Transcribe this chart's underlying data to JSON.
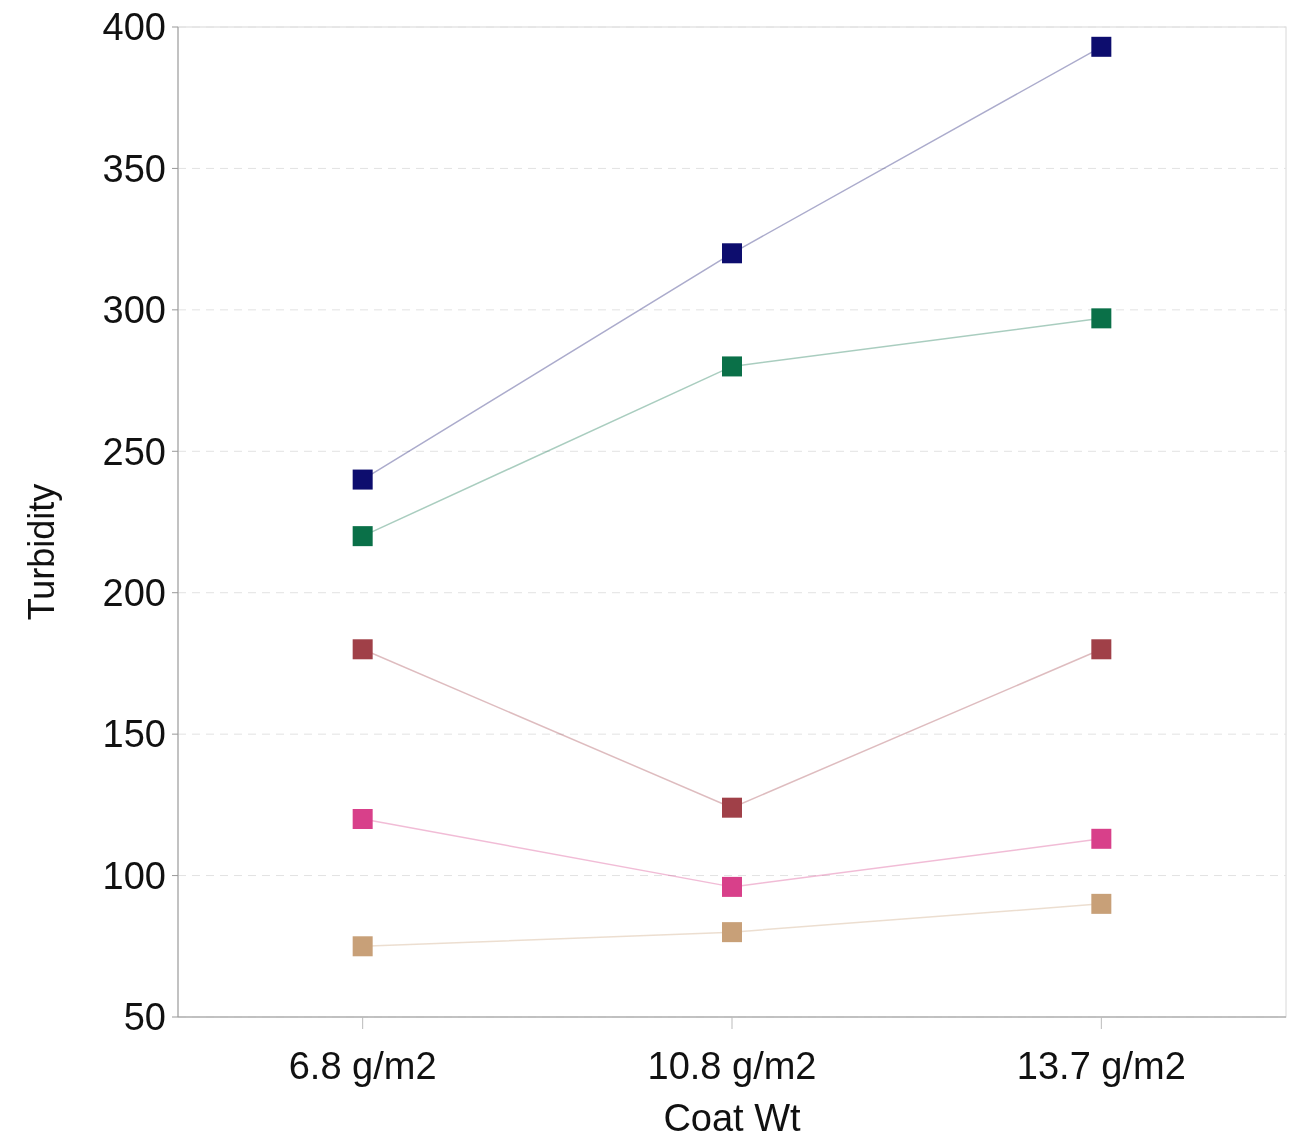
{
  "chart_data": {
    "type": "line",
    "xlabel": "Coat Wt",
    "ylabel": "Turbidity",
    "categories": [
      "6.8 g/m2",
      "10.8 g/m2",
      "13.7 g/m2"
    ],
    "series": [
      {
        "color": "#0d0d6e",
        "values": [
          240,
          320,
          393
        ]
      },
      {
        "color": "#0a7048",
        "values": [
          220,
          280,
          297
        ]
      },
      {
        "color": "#a04048",
        "values": [
          180,
          124,
          180
        ]
      },
      {
        "color": "#d8408a",
        "values": [
          120,
          96,
          113
        ]
      },
      {
        "color": "#c8a078",
        "values": [
          75,
          80,
          90
        ]
      }
    ],
    "ylim": [
      50,
      400
    ],
    "yticks": [
      50,
      100,
      150,
      200,
      250,
      300,
      350,
      400
    ],
    "grid": "y",
    "marker": "square",
    "line_style": "solid"
  }
}
